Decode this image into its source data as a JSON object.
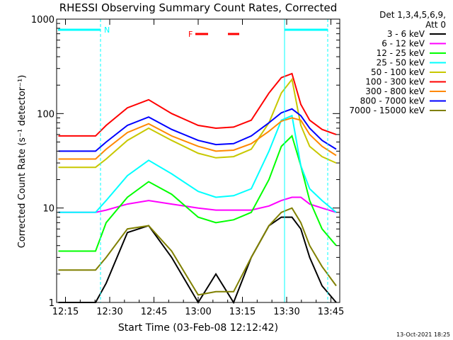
{
  "chart_data": {
    "type": "line",
    "title": "RHESSI Observing Summary Count Rates, Corrected",
    "xlabel": "Start Time (03-Feb-08 12:12:42)",
    "ylabel": "Corrected Count Rate (s⁻¹ detector⁻¹)",
    "ylog": true,
    "ylim": [
      1,
      1000
    ],
    "xlim_minutes": [
      12.2,
      13.8
    ],
    "x_ticks": [
      {
        "label": "12:15",
        "t": 12.25
      },
      {
        "label": "12:30",
        "t": 12.5
      },
      {
        "label": "12:45",
        "t": 12.75
      },
      {
        "label": "13:00",
        "t": 13.0
      },
      {
        "label": "13:15",
        "t": 13.25
      },
      {
        "label": "13:30",
        "t": 13.5
      },
      {
        "label": "13:45",
        "t": 13.75
      }
    ],
    "y_ticks": [
      {
        "label": "1",
        "v": 1
      },
      {
        "label": "10",
        "v": 10
      },
      {
        "label": "100",
        "v": 100
      },
      {
        "label": "1000",
        "v": 1000
      }
    ],
    "legend": {
      "header": "Det 1,3,4,5,6,9,",
      "subheader": "Att 0",
      "placement": "right"
    },
    "x": [
      12.21,
      12.35,
      12.42,
      12.48,
      12.6,
      12.72,
      12.85,
      13.0,
      13.1,
      13.2,
      13.3,
      13.4,
      13.47,
      13.53,
      13.58,
      13.63,
      13.7,
      13.78
    ],
    "series": [
      {
        "name": "3 - 6 keV",
        "color": "#000000",
        "values": [
          1,
          1,
          1,
          1.6,
          5.5,
          6.5,
          3,
          1,
          2,
          1,
          3,
          6.5,
          8,
          8,
          6,
          3,
          1.5,
          1
        ]
      },
      {
        "name": "6 - 12 keV",
        "color": "#ff00ff",
        "values": [
          9,
          9,
          9,
          9.5,
          11,
          12,
          11,
          10,
          9.5,
          9.5,
          9.5,
          10.5,
          12,
          13,
          13,
          11,
          10,
          9
        ]
      },
      {
        "name": "12 - 25 keV",
        "color": "#00ff00",
        "values": [
          3.5,
          3.5,
          3.5,
          7,
          13,
          19,
          14,
          8,
          7,
          7.5,
          9,
          20,
          45,
          58,
          28,
          12,
          6,
          4
        ]
      },
      {
        "name": "25 - 50 keV",
        "color": "#00ffff",
        "values": [
          9,
          9,
          9,
          12,
          22,
          32,
          23,
          15,
          13,
          13.5,
          16,
          40,
          85,
          95,
          28,
          16,
          12,
          9
        ]
      },
      {
        "name": "50 - 100 keV",
        "color": "#c8c800",
        "values": [
          27,
          27,
          27,
          33,
          52,
          70,
          52,
          38,
          34,
          35,
          42,
          80,
          165,
          230,
          75,
          45,
          35,
          30
        ]
      },
      {
        "name": "100 - 300 keV",
        "color": "#ff0000",
        "values": [
          58,
          58,
          58,
          75,
          115,
          140,
          100,
          75,
          70,
          72,
          85,
          165,
          240,
          265,
          125,
          85,
          68,
          60
        ]
      },
      {
        "name": "300 - 800 keV",
        "color": "#ff8800",
        "values": [
          33,
          33,
          33,
          42,
          63,
          78,
          58,
          45,
          40,
          41,
          48,
          65,
          83,
          90,
          85,
          60,
          45,
          36
        ]
      },
      {
        "name": "800 - 7000 keV",
        "color": "#0000ff",
        "values": [
          40,
          40,
          40,
          50,
          75,
          92,
          68,
          52,
          47,
          48,
          58,
          80,
          102,
          112,
          95,
          70,
          52,
          42
        ]
      },
      {
        "name": "7000 - 15000 keV",
        "color": "#808000",
        "values": [
          2.2,
          2.2,
          2.2,
          3,
          6,
          6.5,
          3.5,
          1.2,
          1.3,
          1.3,
          3,
          6.5,
          9,
          10,
          7,
          4,
          2.4,
          1.5
        ]
      }
    ],
    "annotations": [
      {
        "text": "N",
        "color": "#00ffff",
        "t": 12.5
      },
      {
        "text": "F",
        "color": "#ff0000",
        "t": 12.92
      }
    ],
    "timestamp": "13-Oct-2021 18:25"
  }
}
